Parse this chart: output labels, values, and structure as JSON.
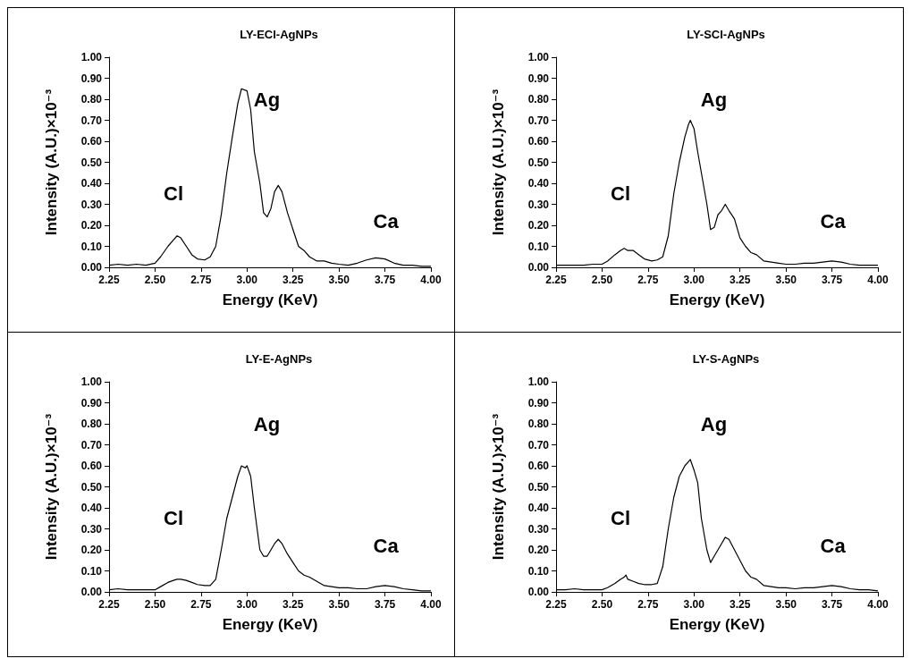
{
  "chart_data": [
    {
      "type": "line",
      "title": "LY-ECl-AgNPs",
      "xlabel": "Energy (KeV)",
      "ylabel": "Intensity (A.U.)×10⁻³",
      "color": "#000000",
      "x": [
        2.25,
        2.3,
        2.35,
        2.4,
        2.45,
        2.5,
        2.53,
        2.57,
        2.6,
        2.62,
        2.64,
        2.67,
        2.7,
        2.73,
        2.77,
        2.8,
        2.83,
        2.86,
        2.89,
        2.92,
        2.95,
        2.97,
        3.0,
        3.02,
        3.04,
        3.07,
        3.09,
        3.11,
        3.13,
        3.15,
        3.17,
        3.19,
        3.22,
        3.25,
        3.28,
        3.31,
        3.34,
        3.38,
        3.42,
        3.46,
        3.5,
        3.55,
        3.6,
        3.65,
        3.7,
        3.75,
        3.8,
        3.85,
        3.9,
        3.95,
        4.0
      ],
      "values": [
        0.01,
        0.015,
        0.01,
        0.015,
        0.01,
        0.02,
        0.05,
        0.1,
        0.13,
        0.15,
        0.14,
        0.1,
        0.06,
        0.04,
        0.035,
        0.05,
        0.1,
        0.25,
        0.45,
        0.62,
        0.78,
        0.85,
        0.84,
        0.75,
        0.55,
        0.4,
        0.26,
        0.24,
        0.28,
        0.36,
        0.39,
        0.36,
        0.26,
        0.18,
        0.1,
        0.08,
        0.05,
        0.03,
        0.03,
        0.02,
        0.015,
        0.01,
        0.02,
        0.035,
        0.045,
        0.04,
        0.02,
        0.01,
        0.01,
        0.005,
        0.005
      ],
      "annotations": [
        "Cl",
        "Ag",
        "Ca"
      ],
      "xlim": [
        2.25,
        4.0
      ],
      "xticks": [
        {
          "value": 2.25,
          "label": "2.25"
        },
        {
          "value": 2.5,
          "label": "2.50"
        },
        {
          "value": 2.75,
          "label": "2.75"
        },
        {
          "value": 3.0,
          "label": "3.00"
        },
        {
          "value": 3.25,
          "label": "3.25"
        },
        {
          "value": 3.5,
          "label": "3.50"
        },
        {
          "value": 3.75,
          "label": "3.75"
        },
        {
          "value": 4.0,
          "label": "4.00"
        }
      ],
      "ylim": [
        0,
        1
      ],
      "yticks": [
        {
          "value": 0,
          "label": "0.00"
        },
        {
          "value": 0.1,
          "label": "0.10"
        },
        {
          "value": 0.2,
          "label": "0.20"
        },
        {
          "value": 0.3,
          "label": "0.30"
        },
        {
          "value": 0.4,
          "label": "0.40"
        },
        {
          "value": 0.5,
          "label": "0.50"
        },
        {
          "value": 0.6,
          "label": "0.60"
        },
        {
          "value": 0.7,
          "label": "0.70"
        },
        {
          "value": 0.8,
          "label": "0.80"
        },
        {
          "value": 0.9,
          "label": "0.90"
        },
        {
          "value": 1,
          "label": "1.00"
        }
      ]
    },
    {
      "type": "line",
      "title": "LY-SCl-AgNPs",
      "xlabel": "Energy (KeV)",
      "ylabel": "Intensity (A.U.)×10⁻³",
      "color": "#000000",
      "x": [
        2.25,
        2.3,
        2.35,
        2.4,
        2.45,
        2.5,
        2.53,
        2.57,
        2.6,
        2.62,
        2.64,
        2.67,
        2.7,
        2.73,
        2.77,
        2.8,
        2.83,
        2.86,
        2.89,
        2.92,
        2.95,
        2.97,
        2.98,
        3.0,
        3.02,
        3.04,
        3.07,
        3.09,
        3.11,
        3.13,
        3.15,
        3.17,
        3.19,
        3.22,
        3.25,
        3.28,
        3.31,
        3.34,
        3.38,
        3.42,
        3.46,
        3.5,
        3.55,
        3.6,
        3.65,
        3.7,
        3.75,
        3.8,
        3.85,
        3.9,
        3.95,
        4.0
      ],
      "values": [
        0.01,
        0.01,
        0.01,
        0.01,
        0.015,
        0.015,
        0.03,
        0.06,
        0.08,
        0.09,
        0.08,
        0.08,
        0.06,
        0.04,
        0.03,
        0.035,
        0.05,
        0.15,
        0.35,
        0.5,
        0.62,
        0.68,
        0.7,
        0.66,
        0.55,
        0.45,
        0.3,
        0.18,
        0.19,
        0.25,
        0.27,
        0.3,
        0.27,
        0.23,
        0.14,
        0.1,
        0.07,
        0.06,
        0.03,
        0.025,
        0.02,
        0.015,
        0.015,
        0.02,
        0.02,
        0.025,
        0.03,
        0.025,
        0.015,
        0.01,
        0.01,
        0.01
      ],
      "annotations": [
        "Cl",
        "Ag",
        "Ca"
      ],
      "xlim": [
        2.25,
        4.0
      ],
      "xticks": [
        {
          "value": 2.25,
          "label": "2.25"
        },
        {
          "value": 2.5,
          "label": "2.50"
        },
        {
          "value": 2.75,
          "label": "2.75"
        },
        {
          "value": 3.0,
          "label": "3.00"
        },
        {
          "value": 3.25,
          "label": "3.25"
        },
        {
          "value": 3.5,
          "label": "3.50"
        },
        {
          "value": 3.75,
          "label": "3.75"
        },
        {
          "value": 4.0,
          "label": "4.00"
        }
      ],
      "ylim": [
        0,
        1
      ],
      "yticks": [
        {
          "value": 0,
          "label": "0.00"
        },
        {
          "value": 0.1,
          "label": "0.10"
        },
        {
          "value": 0.2,
          "label": "0.20"
        },
        {
          "value": 0.3,
          "label": "0.30"
        },
        {
          "value": 0.4,
          "label": "0.40"
        },
        {
          "value": 0.5,
          "label": "0.50"
        },
        {
          "value": 0.6,
          "label": "0.60"
        },
        {
          "value": 0.7,
          "label": "0.70"
        },
        {
          "value": 0.8,
          "label": "0.80"
        },
        {
          "value": 0.9,
          "label": "0.90"
        },
        {
          "value": 1,
          "label": "1.00"
        }
      ]
    },
    {
      "type": "line",
      "title": "LY-E-AgNPs",
      "xlabel": "Energy (KeV)",
      "ylabel": "Intensity (A.U.)×10⁻³",
      "color": "#000000",
      "x": [
        2.25,
        2.3,
        2.35,
        2.4,
        2.45,
        2.5,
        2.53,
        2.57,
        2.6,
        2.62,
        2.64,
        2.67,
        2.7,
        2.73,
        2.77,
        2.8,
        2.83,
        2.86,
        2.89,
        2.92,
        2.95,
        2.97,
        2.99,
        3.0,
        3.02,
        3.04,
        3.07,
        3.09,
        3.11,
        3.13,
        3.15,
        3.17,
        3.19,
        3.22,
        3.25,
        3.28,
        3.31,
        3.34,
        3.38,
        3.42,
        3.46,
        3.5,
        3.55,
        3.6,
        3.65,
        3.7,
        3.75,
        3.8,
        3.85,
        3.9,
        3.95,
        4.0
      ],
      "values": [
        0.01,
        0.015,
        0.01,
        0.01,
        0.01,
        0.01,
        0.025,
        0.045,
        0.055,
        0.06,
        0.06,
        0.055,
        0.045,
        0.035,
        0.03,
        0.03,
        0.06,
        0.2,
        0.35,
        0.45,
        0.55,
        0.6,
        0.59,
        0.6,
        0.55,
        0.4,
        0.2,
        0.17,
        0.17,
        0.2,
        0.23,
        0.25,
        0.23,
        0.18,
        0.14,
        0.1,
        0.08,
        0.07,
        0.05,
        0.03,
        0.025,
        0.02,
        0.02,
        0.015,
        0.015,
        0.025,
        0.03,
        0.025,
        0.015,
        0.01,
        0.005,
        0.005
      ],
      "annotations": [
        "Cl",
        "Ag",
        "Ca"
      ],
      "xlim": [
        2.25,
        4.0
      ],
      "xticks": [
        {
          "value": 2.25,
          "label": "2.25"
        },
        {
          "value": 2.5,
          "label": "2.50"
        },
        {
          "value": 2.75,
          "label": "2.75"
        },
        {
          "value": 3.0,
          "label": "3.00"
        },
        {
          "value": 3.25,
          "label": "3.25"
        },
        {
          "value": 3.5,
          "label": "3.50"
        },
        {
          "value": 3.75,
          "label": "3.75"
        },
        {
          "value": 4.0,
          "label": "4.00"
        }
      ],
      "ylim": [
        0,
        1
      ],
      "yticks": [
        {
          "value": 0,
          "label": "0.00"
        },
        {
          "value": 0.1,
          "label": "0.10"
        },
        {
          "value": 0.2,
          "label": "0.20"
        },
        {
          "value": 0.3,
          "label": "0.30"
        },
        {
          "value": 0.4,
          "label": "0.40"
        },
        {
          "value": 0.5,
          "label": "0.50"
        },
        {
          "value": 0.6,
          "label": "0.60"
        },
        {
          "value": 0.7,
          "label": "0.70"
        },
        {
          "value": 0.8,
          "label": "0.80"
        },
        {
          "value": 0.9,
          "label": "0.90"
        },
        {
          "value": 1,
          "label": "1.00"
        }
      ]
    },
    {
      "type": "line",
      "title": "LY-S-AgNPs",
      "xlabel": "Energy (KeV)",
      "ylabel": "Intensity (A.U.)×10⁻³",
      "color": "#000000",
      "x": [
        2.25,
        2.3,
        2.35,
        2.4,
        2.45,
        2.5,
        2.53,
        2.57,
        2.6,
        2.62,
        2.63,
        2.64,
        2.67,
        2.7,
        2.73,
        2.77,
        2.8,
        2.83,
        2.86,
        2.89,
        2.92,
        2.95,
        2.97,
        2.98,
        3.0,
        3.02,
        3.04,
        3.07,
        3.09,
        3.11,
        3.13,
        3.15,
        3.17,
        3.19,
        3.22,
        3.25,
        3.28,
        3.31,
        3.34,
        3.38,
        3.42,
        3.46,
        3.5,
        3.55,
        3.6,
        3.65,
        3.7,
        3.75,
        3.8,
        3.85,
        3.9,
        3.95,
        4.0
      ],
      "values": [
        0.01,
        0.01,
        0.015,
        0.01,
        0.01,
        0.01,
        0.02,
        0.04,
        0.06,
        0.07,
        0.08,
        0.06,
        0.05,
        0.04,
        0.035,
        0.035,
        0.04,
        0.12,
        0.3,
        0.45,
        0.55,
        0.6,
        0.62,
        0.63,
        0.58,
        0.52,
        0.35,
        0.2,
        0.14,
        0.17,
        0.2,
        0.23,
        0.26,
        0.25,
        0.2,
        0.15,
        0.1,
        0.07,
        0.06,
        0.03,
        0.025,
        0.02,
        0.02,
        0.015,
        0.02,
        0.02,
        0.025,
        0.03,
        0.025,
        0.015,
        0.01,
        0.01,
        0.005
      ],
      "annotations": [
        "Cl",
        "Ag",
        "Ca"
      ],
      "xlim": [
        2.25,
        4.0
      ],
      "xticks": [
        {
          "value": 2.25,
          "label": "2.25"
        },
        {
          "value": 2.5,
          "label": "2.50"
        },
        {
          "value": 2.75,
          "label": "2.75"
        },
        {
          "value": 3.0,
          "label": "3.00"
        },
        {
          "value": 3.25,
          "label": "3.25"
        },
        {
          "value": 3.5,
          "label": "3.50"
        },
        {
          "value": 3.75,
          "label": "3.75"
        },
        {
          "value": 4.0,
          "label": "4.00"
        }
      ],
      "ylim": [
        0,
        1
      ],
      "yticks": [
        {
          "value": 0,
          "label": "0.00"
        },
        {
          "value": 0.1,
          "label": "0.10"
        },
        {
          "value": 0.2,
          "label": "0.20"
        },
        {
          "value": 0.3,
          "label": "0.30"
        },
        {
          "value": 0.4,
          "label": "0.40"
        },
        {
          "value": 0.5,
          "label": "0.50"
        },
        {
          "value": 0.6,
          "label": "0.60"
        },
        {
          "value": 0.7,
          "label": "0.70"
        },
        {
          "value": 0.8,
          "label": "0.80"
        },
        {
          "value": 0.9,
          "label": "0.90"
        },
        {
          "value": 1,
          "label": "1.00"
        }
      ]
    }
  ]
}
